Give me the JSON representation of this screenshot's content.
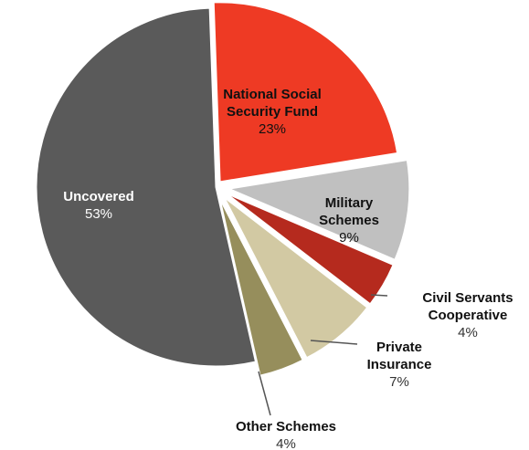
{
  "chart_data": {
    "type": "pie",
    "title": "",
    "slices": [
      {
        "name_lines": [
          "National Social",
          "Security Fund"
        ],
        "value": 23,
        "label": "23%",
        "color": "#ee3a24"
      },
      {
        "name_lines": [
          "Military",
          "Schemes"
        ],
        "value": 9,
        "label": "9%",
        "color": "#c0c0c0"
      },
      {
        "name_lines": [
          "Civil Servants",
          "Cooperative"
        ],
        "value": 4,
        "label": "4%",
        "color": "#b52a1e"
      },
      {
        "name_lines": [
          "Private",
          "Insurance"
        ],
        "value": 7,
        "label": "7%",
        "color": "#d2c9a3"
      },
      {
        "name_lines": [
          "Other Schemes"
        ],
        "value": 4,
        "label": "4%",
        "color": "#968e5c"
      },
      {
        "name_lines": [
          "Uncovered"
        ],
        "value": 53,
        "label": "53%",
        "color": "#5a5a5a"
      }
    ]
  }
}
